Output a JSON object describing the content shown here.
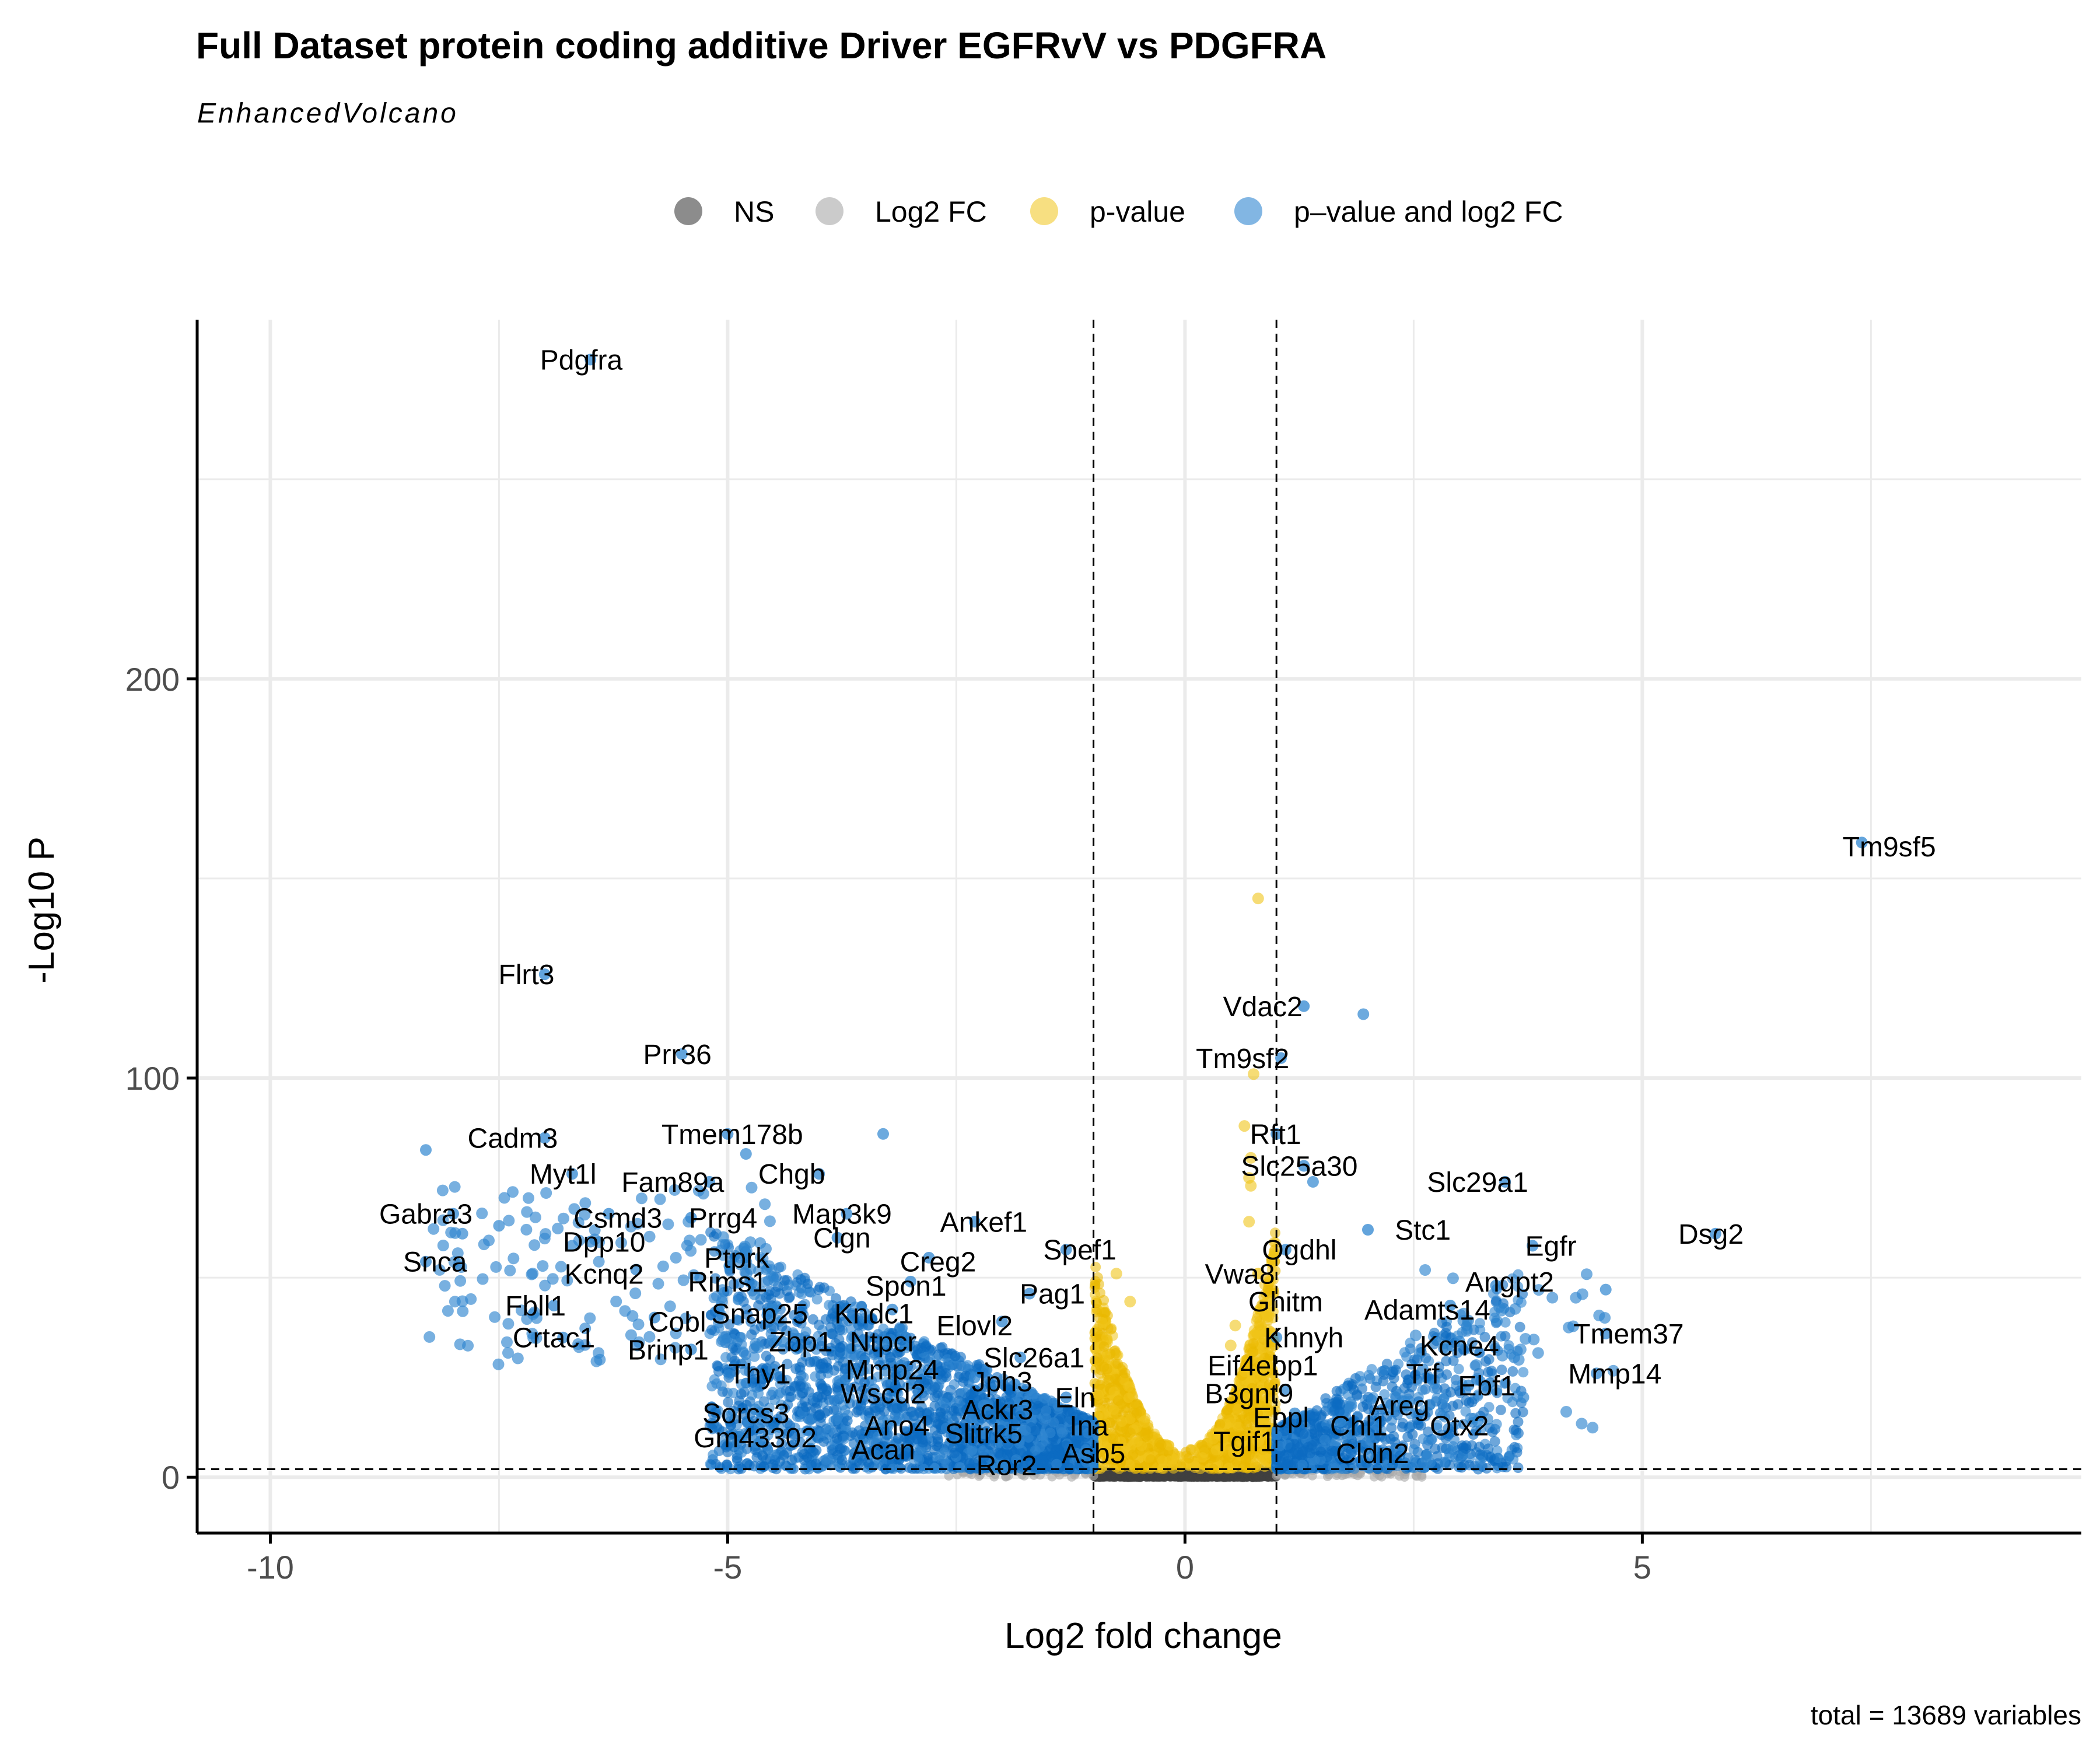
{
  "chart_data": {
    "type": "scatter",
    "title": "Full Dataset protein coding additive Driver EGFRvV vs PDGFRA",
    "subtitle": "EnhancedVolcano",
    "xlabel": "Log2 fold change",
    "ylabel": "-Log10 P",
    "caption": "total = 13689 variables",
    "xlim": [
      -10.8,
      9.8
    ],
    "ylim": [
      -14,
      290
    ],
    "x_ticks": [
      -10,
      -5,
      0,
      5
    ],
    "y_ticks": [
      0,
      100,
      200
    ],
    "grid": true,
    "fc_cutoff": 1,
    "p_cutoff_line": 2,
    "legend": {
      "position": "top",
      "items": [
        {
          "key": "ns",
          "label": "NS",
          "color": "#404040"
        },
        {
          "key": "fc",
          "label": "Log2 FC",
          "color": "#a9a9a9"
        },
        {
          "key": "p",
          "label": "p-value",
          "color": "#f0c419"
        },
        {
          "key": "both",
          "label": "p–value and log2 FC",
          "color": "#2f86d0"
        }
      ]
    },
    "colors": {
      "ns": "#404040",
      "fc": "#a9a9a9",
      "p": "#f0c419",
      "both": "#2f86d0",
      "both_dense": "#0b6bc2",
      "p_dense": "#e9b800"
    },
    "labeled_points": [
      {
        "gene": "Pdgfra",
        "x": -6.5,
        "y": 280,
        "lx": -6.6,
        "ly": 280
      },
      {
        "gene": "Tm9sf5",
        "x": 7.4,
        "y": 159,
        "lx": 7.7,
        "ly": 158
      },
      {
        "gene": "Flrt3",
        "x": -7.0,
        "y": 126,
        "lx": -7.2,
        "ly": 126
      },
      {
        "gene": "Vdac2",
        "x": 1.3,
        "y": 118,
        "lx": 0.85,
        "ly": 118
      },
      {
        "gene": "Prr36",
        "x": -5.5,
        "y": 106,
        "lx": -5.55,
        "ly": 106
      },
      {
        "gene": "Tm9sf2",
        "x": 1.05,
        "y": 105,
        "lx": 0.63,
        "ly": 105
      },
      {
        "gene": "Tmem178b",
        "x": -5.0,
        "y": 86,
        "lx": -4.95,
        "ly": 86
      },
      {
        "gene": "Rft1",
        "x": 1.0,
        "y": 86,
        "lx": 0.99,
        "ly": 86
      },
      {
        "gene": "Cadm3",
        "x": -7.0,
        "y": 85,
        "lx": -7.35,
        "ly": 85
      },
      {
        "gene": "Slc25a30",
        "x": 1.3,
        "y": 78,
        "lx": 1.25,
        "ly": 78
      },
      {
        "gene": "Myt1l",
        "x": -6.7,
        "y": 76,
        "lx": -6.8,
        "ly": 76
      },
      {
        "gene": "Chgb",
        "x": -4.0,
        "y": 76,
        "lx": -4.3,
        "ly": 76
      },
      {
        "gene": "Fam89a",
        "x": -5.2,
        "y": 74,
        "lx": -5.6,
        "ly": 74
      },
      {
        "gene": "Slc29a1",
        "x": 3.5,
        "y": 74,
        "lx": 3.2,
        "ly": 74
      },
      {
        "gene": "Gabra3",
        "x": -8.0,
        "y": 66,
        "lx": -8.3,
        "ly": 66
      },
      {
        "gene": "Csmd3",
        "x": -6.3,
        "y": 66,
        "lx": -6.2,
        "ly": 65
      },
      {
        "gene": "Prrg4",
        "x": -5.4,
        "y": 65,
        "lx": -5.05,
        "ly": 65
      },
      {
        "gene": "Map3k9",
        "x": -3.7,
        "y": 66,
        "lx": -3.75,
        "ly": 66
      },
      {
        "gene": "Ankef1",
        "x": -2.3,
        "y": 64,
        "lx": -2.2,
        "ly": 64
      },
      {
        "gene": "Stc1",
        "x": 2.0,
        "y": 62,
        "lx": 2.6,
        "ly": 62
      },
      {
        "gene": "Dsg2",
        "x": 5.8,
        "y": 61,
        "lx": 5.75,
        "ly": 61
      },
      {
        "gene": "Clgn",
        "x": -3.8,
        "y": 60,
        "lx": -3.75,
        "ly": 60
      },
      {
        "gene": "Dpp10",
        "x": -6.5,
        "y": 59,
        "lx": -6.35,
        "ly": 59
      },
      {
        "gene": "Egfr",
        "x": 3.8,
        "y": 58,
        "lx": 4.0,
        "ly": 58
      },
      {
        "gene": "Spef1",
        "x": -1.3,
        "y": 57,
        "lx": -1.15,
        "ly": 57
      },
      {
        "gene": "Ogdhl",
        "x": 1.1,
        "y": 57,
        "lx": 1.25,
        "ly": 57
      },
      {
        "gene": "Ptprk",
        "x": -4.8,
        "y": 56,
        "lx": -4.9,
        "ly": 55
      },
      {
        "gene": "Creg2",
        "x": -2.8,
        "y": 55,
        "lx": -2.7,
        "ly": 54
      },
      {
        "gene": "Snca",
        "x": -8.3,
        "y": 54,
        "lx": -8.2,
        "ly": 54
      },
      {
        "gene": "Kcnq2",
        "x": -6.0,
        "y": 52,
        "lx": -6.35,
        "ly": 51
      },
      {
        "gene": "Vwa8",
        "x": 0.8,
        "y": 51,
        "lx": 0.6,
        "ly": 51
      },
      {
        "gene": "Rims1",
        "x": -5.3,
        "y": 50,
        "lx": -5.0,
        "ly": 49
      },
      {
        "gene": "Spon1",
        "x": -3.0,
        "y": 49,
        "lx": -3.05,
        "ly": 48
      },
      {
        "gene": "Angpt2",
        "x": 3.4,
        "y": 48,
        "lx": 3.55,
        "ly": 49
      },
      {
        "gene": "Pag1",
        "x": -1.7,
        "y": 46,
        "lx": -1.45,
        "ly": 46
      },
      {
        "gene": "Ghitm",
        "x": 0.9,
        "y": 44,
        "lx": 1.1,
        "ly": 44
      },
      {
        "gene": "Fbll1",
        "x": -6.9,
        "y": 43,
        "lx": -7.1,
        "ly": 43
      },
      {
        "gene": "Adamts14",
        "x": 2.9,
        "y": 43,
        "lx": 2.65,
        "ly": 42
      },
      {
        "gene": "Snap25",
        "x": -4.5,
        "y": 42,
        "lx": -4.65,
        "ly": 41
      },
      {
        "gene": "Kndc1",
        "x": -3.2,
        "y": 42,
        "lx": -3.4,
        "ly": 41
      },
      {
        "gene": "Cobl",
        "x": -5.8,
        "y": 40,
        "lx": -5.55,
        "ly": 39
      },
      {
        "gene": "Elovl2",
        "x": -2.0,
        "y": 39,
        "lx": -2.3,
        "ly": 38
      },
      {
        "gene": "Tmem37",
        "x": 4.6,
        "y": 36,
        "lx": 4.85,
        "ly": 36
      },
      {
        "gene": "Crtac1",
        "x": -6.8,
        "y": 35,
        "lx": -6.9,
        "ly": 35
      },
      {
        "gene": "Khnyh",
        "x": 1.0,
        "y": 35,
        "lx": 1.3,
        "ly": 35
      },
      {
        "gene": "Zbp1",
        "x": -4.4,
        "y": 34,
        "lx": -4.2,
        "ly": 34
      },
      {
        "gene": "Ntpcr",
        "x": -3.3,
        "y": 34,
        "lx": -3.3,
        "ly": 34
      },
      {
        "gene": "Kcne4",
        "x": 3.0,
        "y": 34,
        "lx": 3.0,
        "ly": 33
      },
      {
        "gene": "Brinp1",
        "x": -5.4,
        "y": 32,
        "lx": -5.65,
        "ly": 32
      },
      {
        "gene": "Slc26a1",
        "x": -1.8,
        "y": 30,
        "lx": -1.65,
        "ly": 30
      },
      {
        "gene": "Eif4ebp1",
        "x": 0.9,
        "y": 28,
        "lx": 0.85,
        "ly": 28
      },
      {
        "gene": "Thy1",
        "x": -4.5,
        "y": 27,
        "lx": -4.65,
        "ly": 26
      },
      {
        "gene": "Mmp24",
        "x": -3.1,
        "y": 28,
        "lx": -3.2,
        "ly": 27
      },
      {
        "gene": "Trf",
        "x": 2.6,
        "y": 27,
        "lx": 2.6,
        "ly": 26
      },
      {
        "gene": "Mmp14",
        "x": 4.5,
        "y": 26,
        "lx": 4.7,
        "ly": 26
      },
      {
        "gene": "Jph3",
        "x": -2.3,
        "y": 25,
        "lx": -2.0,
        "ly": 24
      },
      {
        "gene": "Ebf1",
        "x": 3.1,
        "y": 23,
        "lx": 3.3,
        "ly": 23
      },
      {
        "gene": "Wscd2",
        "x": -3.4,
        "y": 22,
        "lx": -3.3,
        "ly": 21
      },
      {
        "gene": "B3gnt9",
        "x": 1.1,
        "y": 22,
        "lx": 0.7,
        "ly": 21
      },
      {
        "gene": "Eln",
        "x": -1.3,
        "y": 20,
        "lx": -1.2,
        "ly": 20
      },
      {
        "gene": "Ackr3",
        "x": -2.2,
        "y": 18,
        "lx": -2.05,
        "ly": 17
      },
      {
        "gene": "Areg",
        "x": 2.4,
        "y": 19,
        "lx": 2.35,
        "ly": 18
      },
      {
        "gene": "Sorcs3",
        "x": -4.7,
        "y": 17,
        "lx": -4.8,
        "ly": 16
      },
      {
        "gene": "Ebpl",
        "x": 1.2,
        "y": 16,
        "lx": 1.05,
        "ly": 15
      },
      {
        "gene": "Chl1",
        "x": 1.7,
        "y": 14,
        "lx": 1.9,
        "ly": 13
      },
      {
        "gene": "Ano4",
        "x": -3.3,
        "y": 14,
        "lx": -3.15,
        "ly": 13
      },
      {
        "gene": "Ina",
        "x": -1.0,
        "y": 13,
        "lx": -1.05,
        "ly": 13
      },
      {
        "gene": "Otx2",
        "x": 3.2,
        "y": 14,
        "lx": 3.0,
        "ly": 13
      },
      {
        "gene": "Slitrk5",
        "x": -2.2,
        "y": 11,
        "lx": -2.2,
        "ly": 11
      },
      {
        "gene": "Gm43302",
        "x": -4.7,
        "y": 9,
        "lx": -4.7,
        "ly": 10
      },
      {
        "gene": "Tgif1",
        "x": 0.8,
        "y": 9,
        "lx": 0.65,
        "ly": 9
      },
      {
        "gene": "Acan",
        "x": -3.2,
        "y": 6,
        "lx": -3.3,
        "ly": 7
      },
      {
        "gene": "Asb5",
        "x": -1.1,
        "y": 6,
        "lx": -1.0,
        "ly": 6
      },
      {
        "gene": "Cldn2",
        "x": 2.0,
        "y": 5,
        "lx": 2.05,
        "ly": 6
      },
      {
        "gene": "Ror2",
        "x": -2.0,
        "y": 3,
        "lx": -1.95,
        "ly": 3
      }
    ]
  }
}
